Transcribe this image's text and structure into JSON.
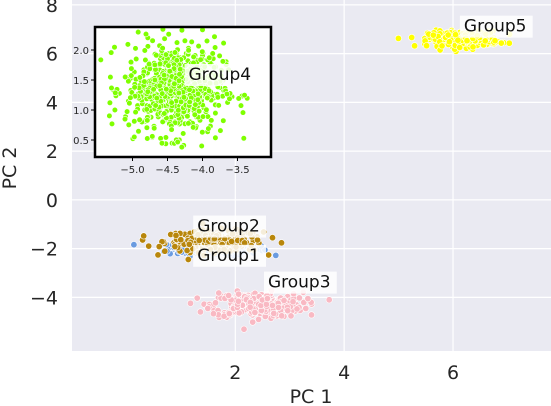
{
  "chart_data": [
    {
      "type": "scatter",
      "title": "",
      "xlabel": "PC 1",
      "ylabel": "PC 2",
      "xlim": [
        -1.0,
        7.8
      ],
      "ylim": [
        -6.2,
        8.2
      ],
      "xticks": [
        2,
        4,
        6
      ],
      "yticks": [
        -4,
        -2,
        0,
        2,
        4,
        6,
        8
      ],
      "grid": true,
      "legend": "none",
      "background": "#eaeaf2",
      "series": [
        {
          "name": "Group1",
          "color": "#6a9be0",
          "center": [
            1.6,
            -2.0
          ],
          "spread": [
            0.42,
            0.14
          ]
        },
        {
          "name": "Group2",
          "color": "#b8860b",
          "center": [
            1.6,
            -1.7
          ],
          "spread": [
            0.45,
            0.22
          ]
        },
        {
          "name": "Group3",
          "color": "#f9b9c3",
          "center": [
            2.4,
            -4.3
          ],
          "spread": [
            0.42,
            0.25
          ]
        },
        {
          "name": "Group5",
          "color": "#ffff00",
          "center": [
            6.2,
            6.6
          ],
          "spread": [
            0.32,
            0.16
          ]
        }
      ]
    },
    {
      "type": "scatter",
      "title": "",
      "xlabel": "",
      "ylabel": "",
      "xlim": [
        -5.45,
        -3.05
      ],
      "ylim": [
        0.25,
        2.35
      ],
      "xticks": [
        -5.0,
        -4.5,
        -4.0,
        -3.5
      ],
      "xtick_labels": [
        "−5.0",
        "−4.5",
        "−4.0",
        "−3.5"
      ],
      "yticks": [
        0.5,
        1.0,
        1.5,
        2.0
      ],
      "ytick_labels": [
        "0.5",
        "1.0",
        "1.5",
        "2.0"
      ],
      "grid": false,
      "legend": "none",
      "background": "#ffffff",
      "series": [
        {
          "name": "Group4",
          "color": "#7fff00",
          "center": [
            -4.4,
            1.35
          ],
          "spread": [
            0.35,
            0.38
          ]
        }
      ]
    }
  ]
}
